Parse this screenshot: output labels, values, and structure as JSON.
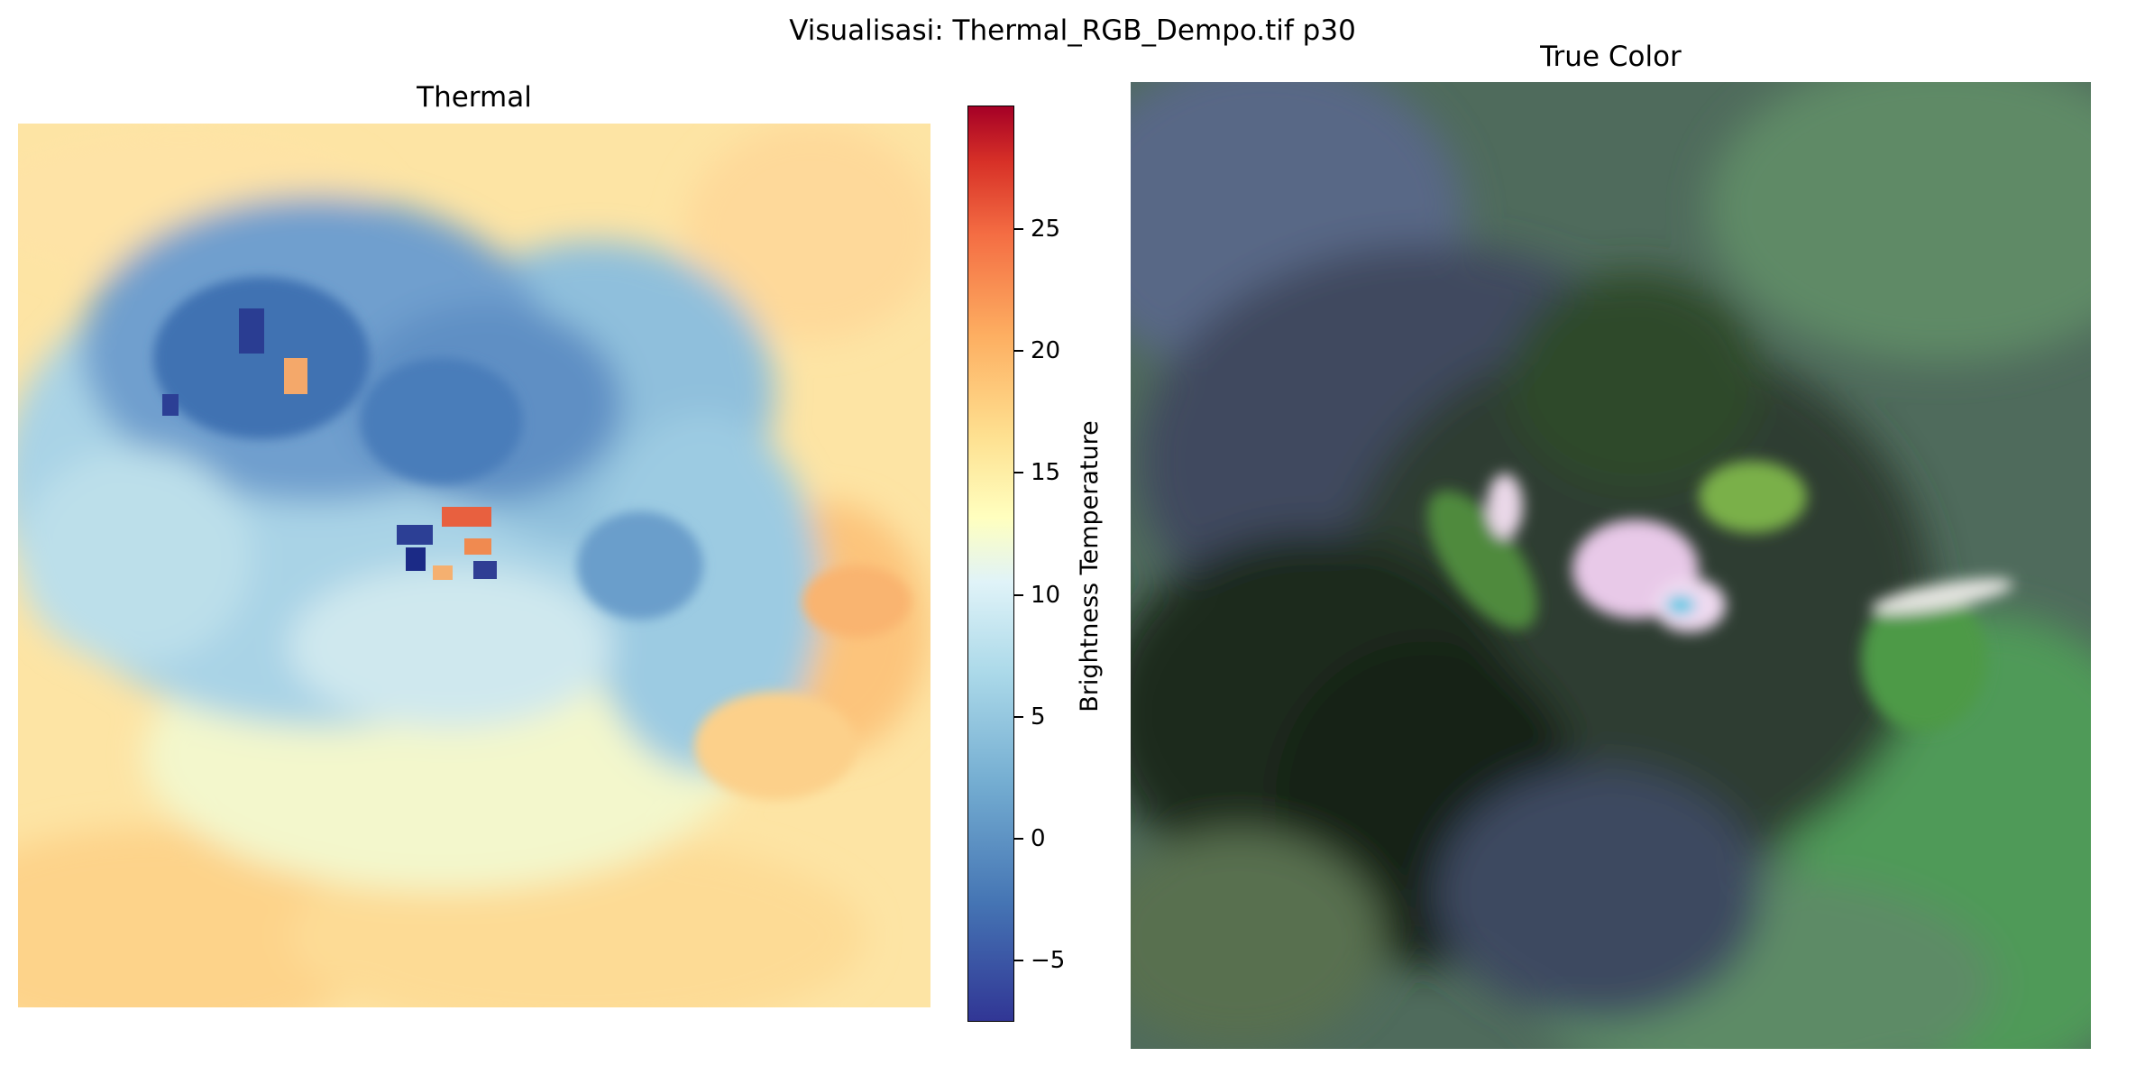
{
  "figure": {
    "suptitle": "Visualisasi: Thermal_RGB_Dempo.tif p30"
  },
  "thermal": {
    "title": "Thermal",
    "colormap": "RdYlBu_r",
    "colorbar": {
      "label": "Brightness Temperature",
      "range": [
        -8,
        30
      ],
      "ticks": [
        "25",
        "20",
        "15",
        "10",
        "5",
        "0",
        "−5"
      ]
    }
  },
  "true_color": {
    "title": "True Color"
  }
}
